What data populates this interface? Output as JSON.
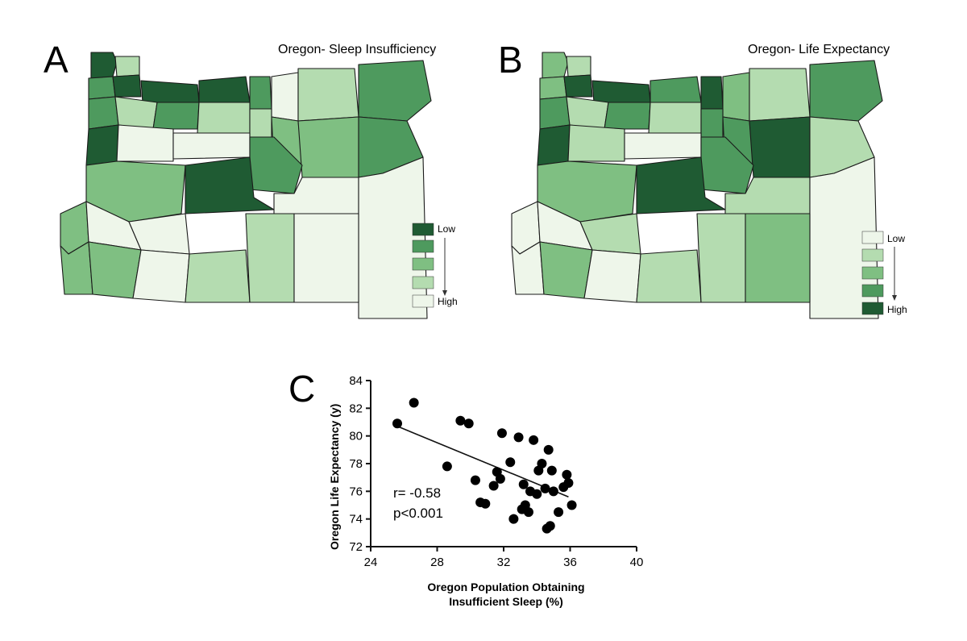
{
  "panels": {
    "a": {
      "letter": "A",
      "title": "Oregon- Sleep Insufficiency",
      "legend": {
        "low": "Low",
        "high": "High",
        "swatches": [
          "#1f5b33",
          "#4e9a5e",
          "#7fbf82",
          "#b4dcb0",
          "#eef6ea"
        ]
      }
    },
    "b": {
      "letter": "B",
      "title": "Oregon- Life Expectancy",
      "legend": {
        "low": "Low",
        "high": "High",
        "swatches": [
          "#eef6ea",
          "#b4dcb0",
          "#7fbf82",
          "#4e9a5e",
          "#1f5b33"
        ]
      }
    },
    "c": {
      "letter": "C"
    }
  },
  "colors": {
    "ramp": [
      "#eef6ea",
      "#b4dcb0",
      "#7fbf82",
      "#4e9a5e",
      "#1f5b33"
    ],
    "border": "#1a1a1a"
  },
  "chart_data": {
    "type": "scatter",
    "title": "",
    "xlabel": [
      "Oregon Population Obtaining",
      "Insufficient Sleep (%)"
    ],
    "ylabel": "Oregon Life Expectancy (y)",
    "xlim": [
      24,
      40
    ],
    "ylim": [
      72,
      84
    ],
    "xticks": [
      24,
      28,
      32,
      36,
      40
    ],
    "yticks": [
      72,
      74,
      76,
      78,
      80,
      82,
      84
    ],
    "annotation": [
      "r= -0.58",
      "p<0.001"
    ],
    "fit_line": {
      "x": [
        25.6,
        35.9
      ],
      "y": [
        80.7,
        75.6
      ]
    },
    "points": [
      {
        "x": 25.6,
        "y": 80.9
      },
      {
        "x": 26.6,
        "y": 82.4
      },
      {
        "x": 28.6,
        "y": 77.8
      },
      {
        "x": 29.4,
        "y": 81.1
      },
      {
        "x": 29.9,
        "y": 80.9
      },
      {
        "x": 30.3,
        "y": 76.8
      },
      {
        "x": 30.6,
        "y": 75.2
      },
      {
        "x": 30.9,
        "y": 75.1
      },
      {
        "x": 31.4,
        "y": 76.4
      },
      {
        "x": 31.6,
        "y": 77.4
      },
      {
        "x": 31.9,
        "y": 80.2
      },
      {
        "x": 31.8,
        "y": 76.9
      },
      {
        "x": 32.4,
        "y": 78.1
      },
      {
        "x": 32.6,
        "y": 74.0
      },
      {
        "x": 32.9,
        "y": 79.9
      },
      {
        "x": 33.1,
        "y": 74.7
      },
      {
        "x": 33.3,
        "y": 75.0
      },
      {
        "x": 33.2,
        "y": 76.5
      },
      {
        "x": 33.5,
        "y": 74.5
      },
      {
        "x": 33.6,
        "y": 76.0
      },
      {
        "x": 33.8,
        "y": 79.7
      },
      {
        "x": 34.0,
        "y": 75.8
      },
      {
        "x": 34.1,
        "y": 77.5
      },
      {
        "x": 34.3,
        "y": 78.0
      },
      {
        "x": 34.5,
        "y": 76.2
      },
      {
        "x": 34.6,
        "y": 73.3
      },
      {
        "x": 34.7,
        "y": 79.0
      },
      {
        "x": 34.9,
        "y": 77.5
      },
      {
        "x": 34.8,
        "y": 73.5
      },
      {
        "x": 35.0,
        "y": 76.0
      },
      {
        "x": 35.3,
        "y": 74.5
      },
      {
        "x": 35.6,
        "y": 76.3
      },
      {
        "x": 35.8,
        "y": 77.2
      },
      {
        "x": 35.9,
        "y": 76.6
      },
      {
        "x": 36.1,
        "y": 75.0
      }
    ]
  }
}
